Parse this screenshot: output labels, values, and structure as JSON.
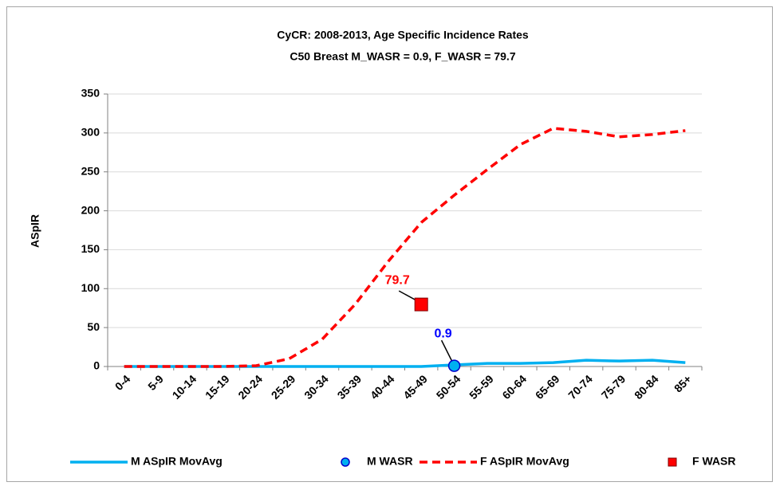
{
  "chart_data": {
    "type": "line",
    "title": "CyCR: 2008-2013, Age Specific Incidence Rates",
    "subtitle": "C50 Breast   M_WASR = 0.9, F_WASR = 79.7",
    "y_label": "ASpIR",
    "categories": [
      "0-4",
      "5-9",
      "10-14",
      "15-19",
      "20-24",
      "25-29",
      "30-34",
      "35-39",
      "40-44",
      "45-49",
      "50-54",
      "55-59",
      "60-64",
      "65-69",
      "70-74",
      "75-79",
      "80-84",
      "85+"
    ],
    "series": [
      {
        "name": "M ASpIR MovAvg",
        "color": "#00b0f0",
        "style": "solid",
        "values": [
          0,
          0,
          0,
          0,
          0,
          0,
          0,
          0,
          0,
          0,
          2,
          4,
          4,
          5,
          8,
          7,
          8,
          5
        ]
      },
      {
        "name": "M WASR",
        "color": "#00b0f0",
        "style": "circle",
        "label_color": "#0000ff",
        "values": [
          null,
          null,
          null,
          null,
          null,
          null,
          null,
          null,
          null,
          null,
          0.9,
          null,
          null,
          null,
          null,
          null,
          null,
          null
        ]
      },
      {
        "name": "F ASpIR MovAvg",
        "color": "#ff0000",
        "style": "dashed",
        "values": [
          0,
          0,
          0,
          0,
          1,
          10,
          35,
          80,
          135,
          185,
          220,
          253,
          285,
          306,
          302,
          295,
          298,
          303
        ]
      },
      {
        "name": "F WASR",
        "color": "#ff0000",
        "style": "square",
        "label_color": "#ff0000",
        "values": [
          null,
          null,
          null,
          null,
          null,
          null,
          null,
          null,
          null,
          79.7,
          null,
          null,
          null,
          null,
          null,
          null,
          null,
          null
        ]
      }
    ],
    "ylim": [
      0,
      350
    ],
    "yticks": [
      0,
      50,
      100,
      150,
      200,
      250,
      300,
      350
    ],
    "grid": true,
    "legend": "bottom"
  }
}
